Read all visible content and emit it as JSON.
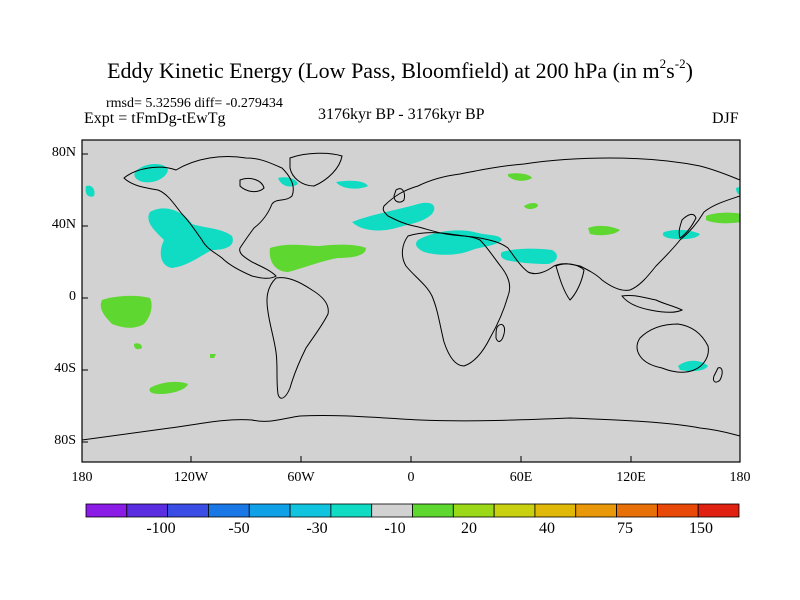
{
  "header": {
    "title_main": "Eddy Kinetic Energy (Low Pass, Bloomfield) at 200 hPa (in m",
    "title_sup1": "2",
    "title_s": "s",
    "title_sup2": "-2",
    "title_close": ")",
    "stats": "rmsd= 5.32596 diff= -0.279434",
    "experiment": "Expt = tFmDg-tEwTg",
    "period": "3176kyr BP - 3176kyr BP",
    "season": "DJF"
  },
  "axes": {
    "lat_labels": [
      "80N",
      "40N",
      "0",
      "40S",
      "80S"
    ],
    "lon_labels": [
      "180",
      "120W",
      "60W",
      "0",
      "60E",
      "120E",
      "180"
    ]
  },
  "colorbar": {
    "colors": [
      "#8b1ce6",
      "#5a2ee0",
      "#3a4ee6",
      "#1a78e6",
      "#10a0e8",
      "#10c4e0",
      "#10dcc4",
      "#d2d2d2",
      "#5ed830",
      "#9ad818",
      "#c8d010",
      "#e0b808",
      "#e89808",
      "#e87008",
      "#e84808",
      "#e02010"
    ],
    "labels": [
      "-100",
      "-50",
      "-30",
      "-10",
      "20",
      "40",
      "75",
      "150"
    ]
  },
  "map": {
    "background": "#d2d2d2",
    "negative_color": "#10dcc4",
    "positive_color": "#5ed830"
  }
}
